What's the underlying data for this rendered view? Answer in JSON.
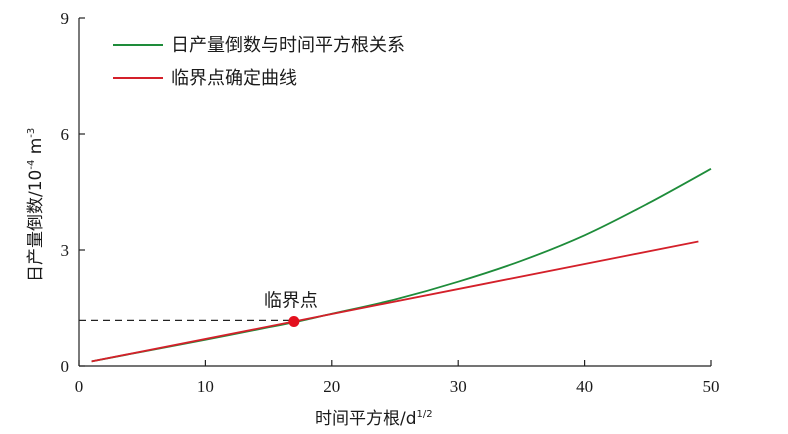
{
  "chart_data": {
    "type": "line",
    "xlabel_main": "时间平方根/d",
    "xlabel_sup": "1/2",
    "ylabel_main": "日产量倒数/10",
    "ylabel_sup1": "-4",
    "ylabel_mid": " m",
    "ylabel_sup2": "-3",
    "xlim": [
      0,
      50
    ],
    "ylim": [
      0,
      9
    ],
    "xticks": [
      0,
      10,
      20,
      30,
      40,
      50
    ],
    "yticks": [
      0,
      3,
      6,
      9
    ],
    "grid": false,
    "legend_position": "top-left",
    "series": [
      {
        "name": "日产量倒数与时间平方根关系",
        "color": "#1e8c3a",
        "x": [
          1,
          5,
          10,
          15,
          17,
          20,
          25,
          30,
          35,
          40,
          45,
          50
        ],
        "y": [
          0.12,
          0.37,
          0.68,
          1.0,
          1.13,
          1.35,
          1.72,
          2.18,
          2.72,
          3.38,
          4.2,
          5.1
        ]
      },
      {
        "name": "临界点确定曲线",
        "color": "#d4202a",
        "x": [
          1,
          17,
          49
        ],
        "y": [
          0.12,
          1.15,
          3.22
        ]
      }
    ],
    "reference_line": {
      "y": 1.18,
      "x_end": 17,
      "style": "dashed"
    },
    "annotation": {
      "text": "临界点",
      "x": 17,
      "y": 1.15,
      "marker_color": "#e3101e"
    }
  }
}
